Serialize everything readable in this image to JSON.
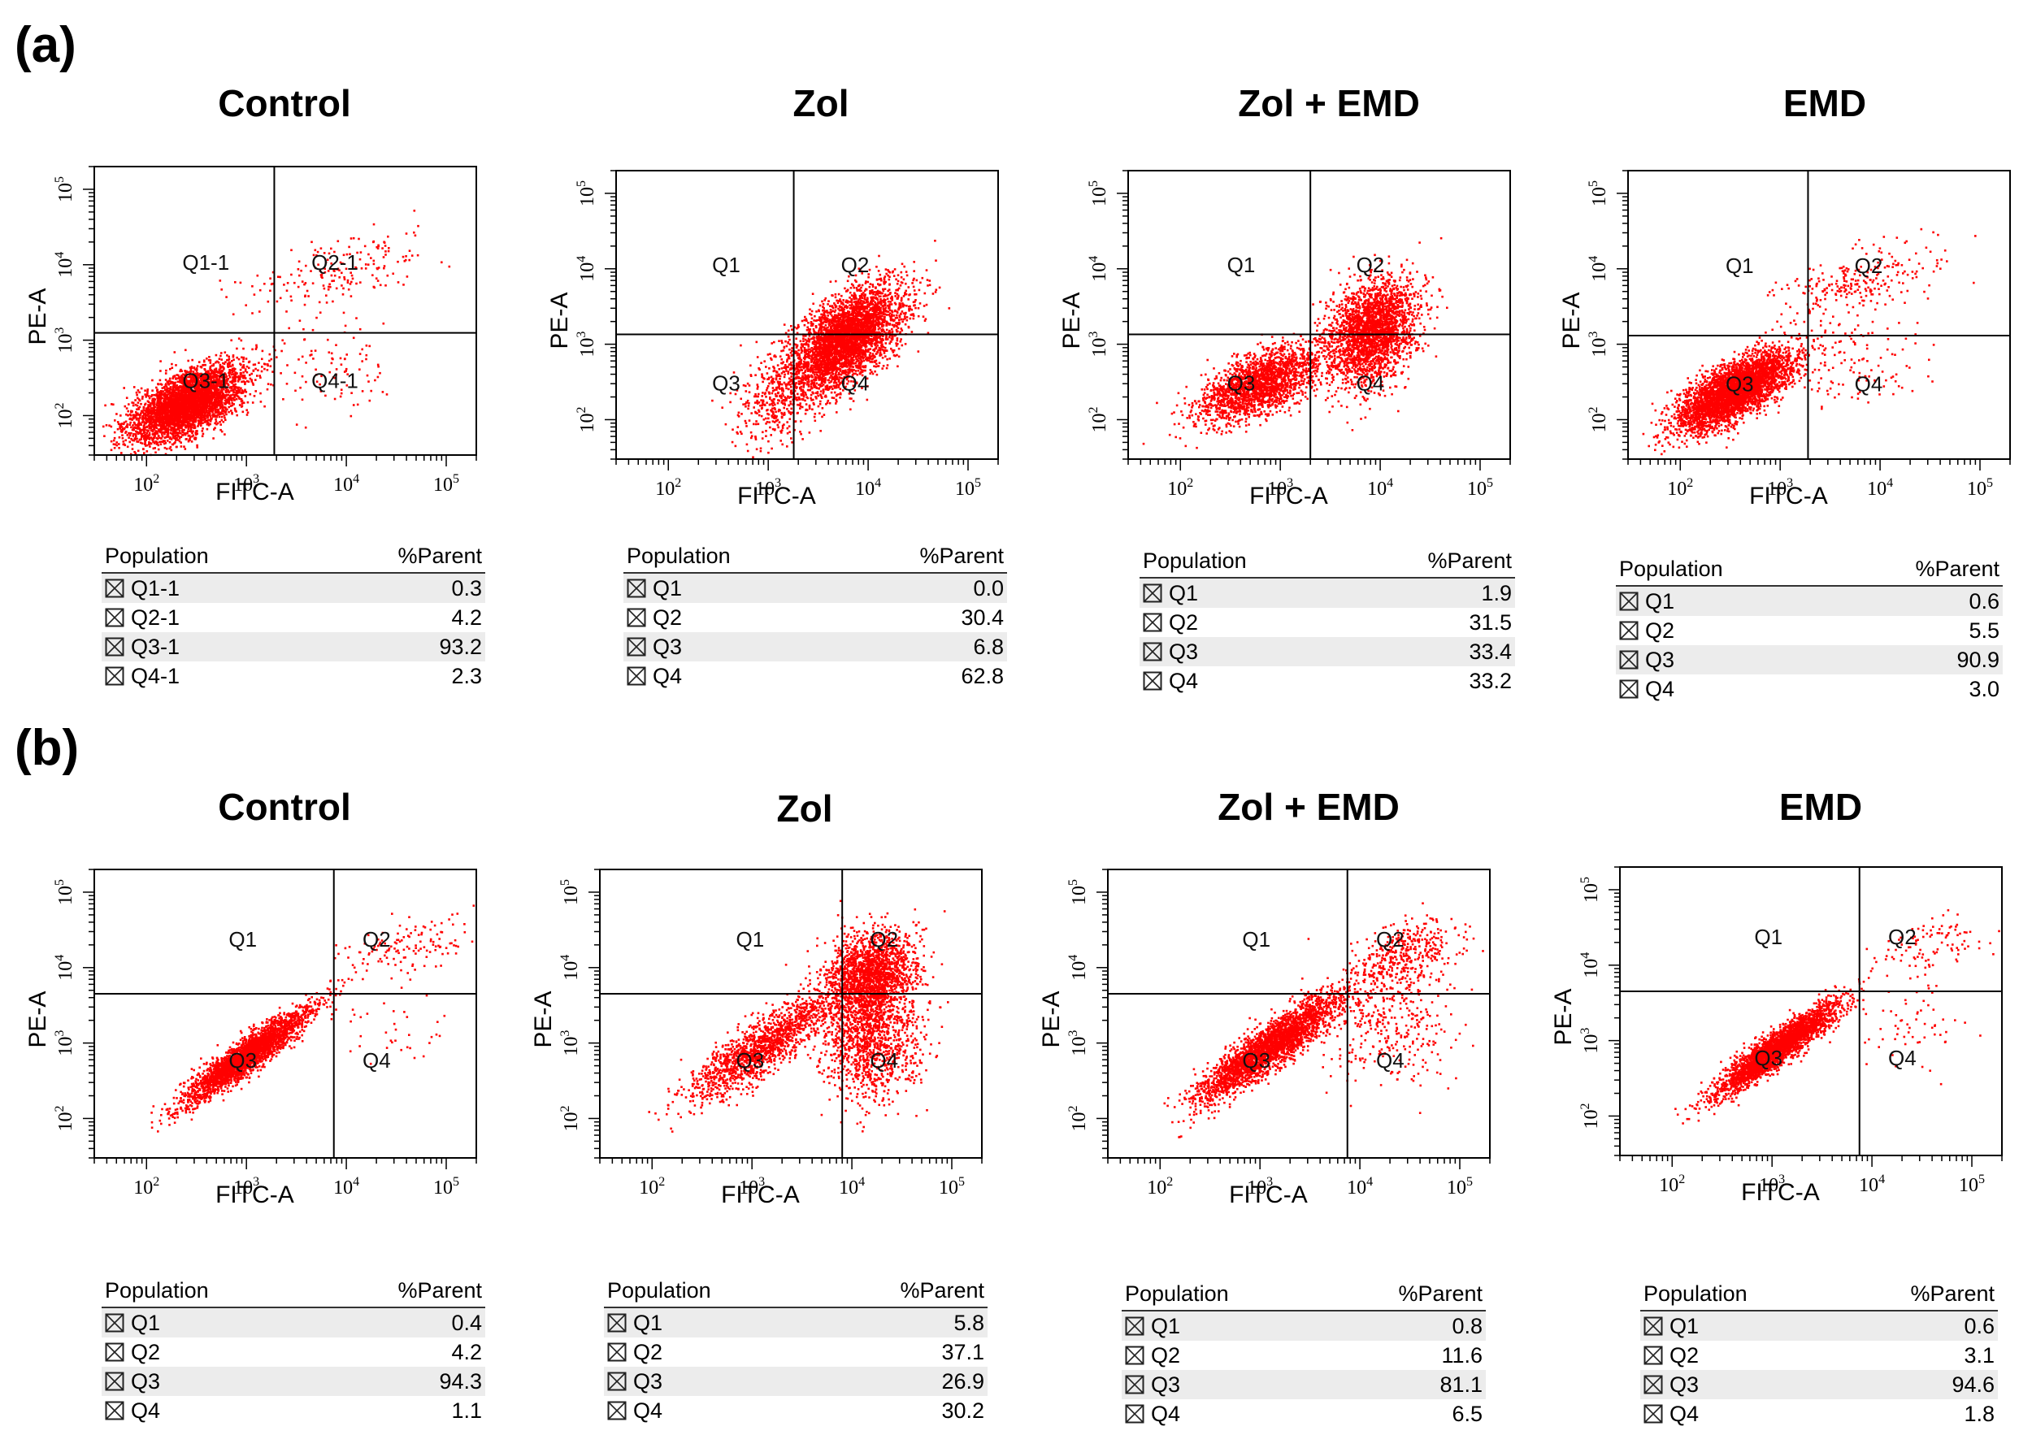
{
  "panels": [
    {
      "letter": "(a)"
    },
    {
      "letter": "(b)"
    }
  ],
  "axis_labels": {
    "x": "FITC-A",
    "y": "PE-A"
  },
  "table_headers": {
    "population": "Population",
    "parent": "%Parent"
  },
  "colors": {
    "dots": "#ff0000",
    "frame": "#000000",
    "row_alt": "#ececec"
  },
  "chart_data": [
    {
      "type": "scatter",
      "panel": "(a)",
      "title": "Control",
      "xlabel": "FITC-A",
      "ylabel": "PE-A",
      "x_scale": "log",
      "y_scale": "log",
      "xlim": [
        30,
        200000
      ],
      "ylim": [
        30,
        200000
      ],
      "x_ticks": [
        "10^2",
        "10^3",
        "10^4",
        "10^5"
      ],
      "y_ticks": [
        "10^2",
        "10^3",
        "10^4",
        "10^5"
      ],
      "gate": {
        "x": 1900,
        "y": 1250
      },
      "quadrant_labels": [
        "Q1-1",
        "Q2-1",
        "Q3-1",
        "Q4-1"
      ],
      "populations": [
        {
          "name": "Q1-1",
          "value": "0.3"
        },
        {
          "name": "Q2-1",
          "value": "4.2"
        },
        {
          "name": "Q3-1",
          "value": "93.2"
        },
        {
          "name": "Q4-1",
          "value": "2.3"
        }
      ],
      "clusters": [
        {
          "mx": 250,
          "my": 150,
          "sx": 0.28,
          "sy": 0.25,
          "rho": 0.6,
          "frac": 0.93
        },
        {
          "mx": 8000,
          "my": 9000,
          "sx": 0.45,
          "sy": 0.25,
          "rho": 0.5,
          "frac": 0.045
        },
        {
          "mx": 5000,
          "my": 400,
          "sx": 0.4,
          "sy": 0.3,
          "rho": 0,
          "frac": 0.025
        }
      ],
      "n_points": 4200
    },
    {
      "type": "scatter",
      "panel": "(a)",
      "title": "Zol",
      "xlabel": "FITC-A",
      "ylabel": "PE-A",
      "x_scale": "log",
      "y_scale": "log",
      "xlim": [
        30,
        200000
      ],
      "ylim": [
        30,
        200000
      ],
      "x_ticks": [
        "10^2",
        "10^3",
        "10^4",
        "10^5"
      ],
      "y_ticks": [
        "10^2",
        "10^3",
        "10^4",
        "10^5"
      ],
      "gate": {
        "x": 1800,
        "y": 1350
      },
      "quadrant_labels": [
        "Q1",
        "Q2",
        "Q3",
        "Q4"
      ],
      "populations": [
        {
          "name": "Q1",
          "value": "0.0"
        },
        {
          "name": "Q2",
          "value": "30.4"
        },
        {
          "name": "Q3",
          "value": "6.8"
        },
        {
          "name": "Q4",
          "value": "62.8"
        }
      ],
      "clusters": [
        {
          "mx": 6000,
          "my": 1200,
          "sx": 0.28,
          "sy": 0.35,
          "rho": 0.6,
          "frac": 0.9
        },
        {
          "mx": 1200,
          "my": 200,
          "sx": 0.2,
          "sy": 0.3,
          "rho": 0.3,
          "frac": 0.1
        }
      ],
      "n_points": 4200
    },
    {
      "type": "scatter",
      "panel": "(a)",
      "title": "Zol + EMD",
      "xlabel": "FITC-A",
      "ylabel": "PE-A",
      "x_scale": "log",
      "y_scale": "log",
      "xlim": [
        30,
        200000
      ],
      "ylim": [
        30,
        200000
      ],
      "x_ticks": [
        "10^2",
        "10^3",
        "10^4",
        "10^5"
      ],
      "y_ticks": [
        "10^2",
        "10^3",
        "10^4",
        "10^5"
      ],
      "gate": {
        "x": 2000,
        "y": 1350
      },
      "quadrant_labels": [
        "Q1",
        "Q2",
        "Q3",
        "Q4"
      ],
      "populations": [
        {
          "name": "Q1",
          "value": "1.9"
        },
        {
          "name": "Q2",
          "value": "31.5"
        },
        {
          "name": "Q3",
          "value": "33.4"
        },
        {
          "name": "Q4",
          "value": "33.2"
        }
      ],
      "clusters": [
        {
          "mx": 600,
          "my": 300,
          "sx": 0.3,
          "sy": 0.25,
          "rho": 0.6,
          "frac": 0.45
        },
        {
          "mx": 8000,
          "my": 1500,
          "sx": 0.22,
          "sy": 0.35,
          "rho": 0.3,
          "frac": 0.55
        }
      ],
      "n_points": 4500
    },
    {
      "type": "scatter",
      "panel": "(a)",
      "title": "EMD",
      "xlabel": "FITC-A",
      "ylabel": "PE-A",
      "x_scale": "log",
      "y_scale": "log",
      "xlim": [
        30,
        200000
      ],
      "ylim": [
        30,
        200000
      ],
      "x_ticks": [
        "10^2",
        "10^3",
        "10^4",
        "10^5"
      ],
      "y_ticks": [
        "10^2",
        "10^3",
        "10^4",
        "10^5"
      ],
      "gate": {
        "x": 1900,
        "y": 1300
      },
      "quadrant_labels": [
        "Q1",
        "Q2",
        "Q3",
        "Q4"
      ],
      "populations": [
        {
          "name": "Q1",
          "value": "0.6"
        },
        {
          "name": "Q2",
          "value": "5.5"
        },
        {
          "name": "Q3",
          "value": "90.9"
        },
        {
          "name": "Q4",
          "value": "3.0"
        }
      ],
      "clusters": [
        {
          "mx": 350,
          "my": 250,
          "sx": 0.28,
          "sy": 0.25,
          "rho": 0.7,
          "frac": 0.91
        },
        {
          "mx": 6000,
          "my": 7000,
          "sx": 0.4,
          "sy": 0.25,
          "rho": 0.5,
          "frac": 0.06
        },
        {
          "mx": 5000,
          "my": 600,
          "sx": 0.35,
          "sy": 0.3,
          "rho": 0,
          "frac": 0.03
        }
      ],
      "n_points": 4200
    },
    {
      "type": "scatter",
      "panel": "(b)",
      "title": "Control",
      "xlabel": "FITC-A",
      "ylabel": "PE-A",
      "x_scale": "log",
      "y_scale": "log",
      "xlim": [
        30,
        200000
      ],
      "ylim": [
        30,
        200000
      ],
      "x_ticks": [
        "10^2",
        "10^3",
        "10^4",
        "10^5"
      ],
      "y_ticks": [
        "10^2",
        "10^3",
        "10^4",
        "10^5"
      ],
      "gate": {
        "x": 7500,
        "y": 4500
      },
      "quadrant_labels": [
        "Q1",
        "Q2",
        "Q3",
        "Q4"
      ],
      "populations": [
        {
          "name": "Q1",
          "value": "0.4"
        },
        {
          "name": "Q2",
          "value": "4.2"
        },
        {
          "name": "Q3",
          "value": "94.3"
        },
        {
          "name": "Q4",
          "value": "1.1"
        }
      ],
      "clusters": [
        {
          "mx": 1000,
          "my": 700,
          "sx": 0.3,
          "sy": 0.3,
          "rho": 0.92,
          "frac": 0.943
        },
        {
          "mx": 40000,
          "my": 20000,
          "sx": 0.3,
          "sy": 0.2,
          "rho": 0.4,
          "frac": 0.045
        },
        {
          "mx": 25000,
          "my": 1500,
          "sx": 0.3,
          "sy": 0.3,
          "rho": 0,
          "frac": 0.012
        }
      ],
      "n_points": 3000
    },
    {
      "type": "scatter",
      "panel": "(b)",
      "title": "Zol",
      "xlabel": "FITC-A",
      "ylabel": "PE-A",
      "x_scale": "log",
      "y_scale": "log",
      "xlim": [
        30,
        200000
      ],
      "ylim": [
        30,
        200000
      ],
      "x_ticks": [
        "10^2",
        "10^3",
        "10^4",
        "10^5"
      ],
      "y_ticks": [
        "10^2",
        "10^3",
        "10^4",
        "10^5"
      ],
      "gate": {
        "x": 8000,
        "y": 4500
      },
      "quadrant_labels": [
        "Q1",
        "Q2",
        "Q3",
        "Q4"
      ],
      "populations": [
        {
          "name": "Q1",
          "value": "5.8"
        },
        {
          "name": "Q2",
          "value": "37.1"
        },
        {
          "name": "Q3",
          "value": "26.9"
        },
        {
          "name": "Q4",
          "value": "30.2"
        }
      ],
      "clusters": [
        {
          "mx": 1200,
          "my": 900,
          "sx": 0.35,
          "sy": 0.35,
          "rho": 0.85,
          "frac": 0.33
        },
        {
          "mx": 15000,
          "my": 8000,
          "sx": 0.22,
          "sy": 0.3,
          "rho": 0.2,
          "frac": 0.4
        },
        {
          "mx": 15000,
          "my": 1200,
          "sx": 0.25,
          "sy": 0.4,
          "rho": 0,
          "frac": 0.27
        }
      ],
      "n_points": 4500
    },
    {
      "type": "scatter",
      "panel": "(b)",
      "title": "Zol + EMD",
      "xlabel": "FITC-A",
      "ylabel": "PE-A",
      "x_scale": "log",
      "y_scale": "log",
      "xlim": [
        30,
        200000
      ],
      "ylim": [
        30,
        200000
      ],
      "x_ticks": [
        "10^2",
        "10^3",
        "10^4",
        "10^5"
      ],
      "y_ticks": [
        "10^2",
        "10^3",
        "10^4",
        "10^5"
      ],
      "gate": {
        "x": 7500,
        "y": 4500
      },
      "quadrant_labels": [
        "Q1",
        "Q2",
        "Q3",
        "Q4"
      ],
      "populations": [
        {
          "name": "Q1",
          "value": "0.8"
        },
        {
          "name": "Q2",
          "value": "11.6"
        },
        {
          "name": "Q3",
          "value": "81.1"
        },
        {
          "name": "Q4",
          "value": "6.5"
        }
      ],
      "clusters": [
        {
          "mx": 1200,
          "my": 900,
          "sx": 0.35,
          "sy": 0.35,
          "rho": 0.9,
          "frac": 0.8
        },
        {
          "mx": 25000,
          "my": 14000,
          "sx": 0.28,
          "sy": 0.25,
          "rho": 0.3,
          "frac": 0.12
        },
        {
          "mx": 20000,
          "my": 1800,
          "sx": 0.3,
          "sy": 0.35,
          "rho": 0,
          "frac": 0.08
        }
      ],
      "n_points": 3600
    },
    {
      "type": "scatter",
      "panel": "(b)",
      "title": "EMD",
      "xlabel": "FITC-A",
      "ylabel": "PE-A",
      "x_scale": "log",
      "y_scale": "log",
      "xlim": [
        30,
        200000
      ],
      "ylim": [
        30,
        200000
      ],
      "x_ticks": [
        "10^2",
        "10^3",
        "10^4",
        "10^5"
      ],
      "y_ticks": [
        "10^2",
        "10^3",
        "10^4",
        "10^5"
      ],
      "gate": {
        "x": 7500,
        "y": 4500
      },
      "quadrant_labels": [
        "Q1",
        "Q2",
        "Q3",
        "Q4"
      ],
      "populations": [
        {
          "name": "Q1",
          "value": "0.6"
        },
        {
          "name": "Q2",
          "value": "3.1"
        },
        {
          "name": "Q3",
          "value": "94.6"
        },
        {
          "name": "Q4",
          "value": "1.8"
        }
      ],
      "clusters": [
        {
          "mx": 1100,
          "my": 800,
          "sx": 0.3,
          "sy": 0.3,
          "rho": 0.92,
          "frac": 0.946
        },
        {
          "mx": 40000,
          "my": 20000,
          "sx": 0.3,
          "sy": 0.2,
          "rho": 0.4,
          "frac": 0.034
        },
        {
          "mx": 25000,
          "my": 1600,
          "sx": 0.3,
          "sy": 0.3,
          "rho": 0,
          "frac": 0.02
        }
      ],
      "n_points": 3000
    }
  ]
}
